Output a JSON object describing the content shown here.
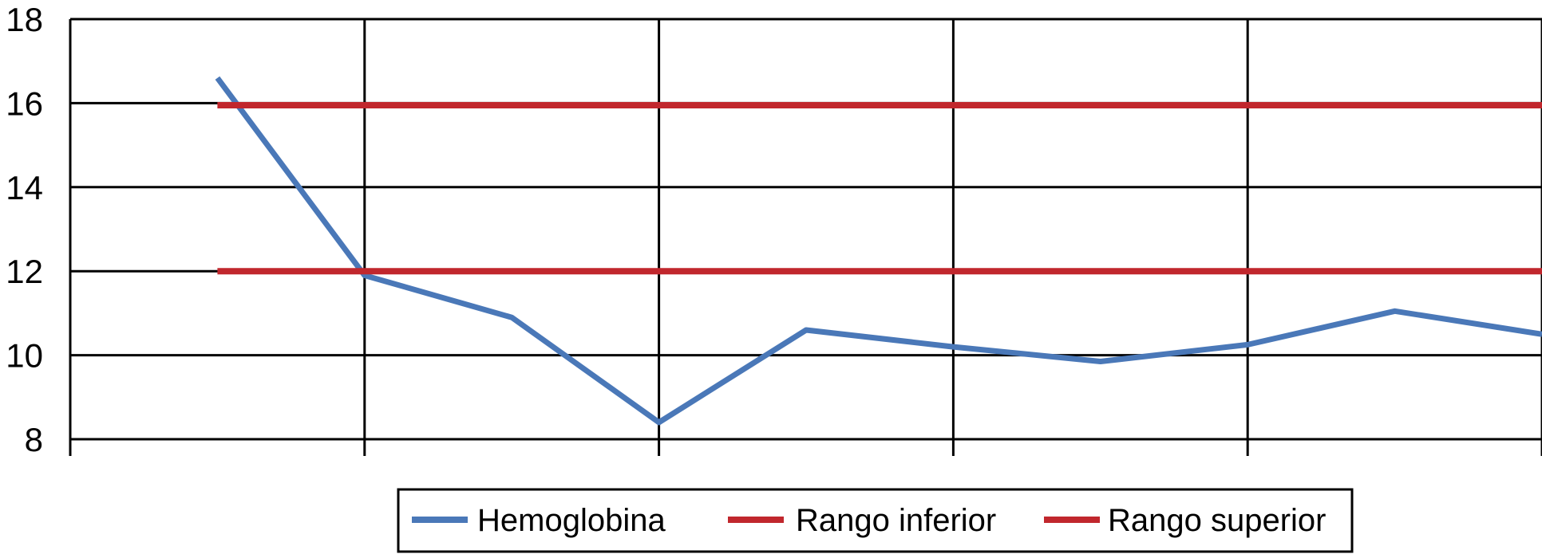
{
  "chart_data": {
    "type": "line",
    "title": "",
    "xlabel": "",
    "ylabel": "",
    "x": [
      1,
      2,
      3,
      4,
      5,
      6,
      7,
      8,
      9,
      10
    ],
    "ylim": [
      8,
      18
    ],
    "yticks": [
      "8",
      "10",
      "12",
      "14",
      "16",
      "18"
    ],
    "xgrid_divisions": 5,
    "grid": true,
    "legend_position": "bottom",
    "series": [
      {
        "name": "Hemoglobina",
        "color": "#4a78b8",
        "values": [
          16.6,
          11.9,
          10.9,
          8.4,
          10.6,
          10.2,
          9.85,
          10.25,
          11.05,
          10.5
        ]
      },
      {
        "name": "Rango inferior",
        "color": "#c1272d",
        "values": [
          12,
          12,
          12,
          12,
          12,
          12,
          12,
          12,
          12,
          12
        ]
      },
      {
        "name": "Rango superior",
        "color": "#c1272d",
        "values": [
          15.95,
          15.95,
          15.95,
          15.95,
          15.95,
          15.95,
          15.95,
          15.95,
          15.95,
          15.95
        ]
      }
    ]
  }
}
